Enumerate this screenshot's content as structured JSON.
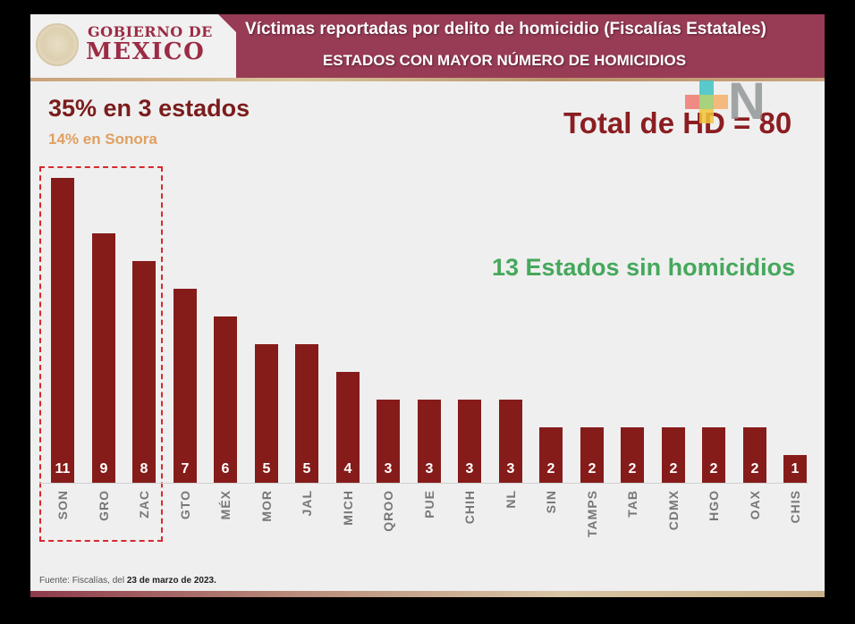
{
  "header": {
    "logo_line1": "GOBIERNO DE",
    "logo_line2": "MÉXICO",
    "title": "Víctimas reportadas por delito de homicidio (Fiscalías Estatales)",
    "subtitle": "ESTADOS CON MAYOR NÚMERO DE HOMICIDIOS"
  },
  "annotations": {
    "headline": "35% en 3 estados",
    "subheadline": "14% en Sonora",
    "total": "Total de HD = 80",
    "no_homicides": "13 Estados sin homicidios"
  },
  "footnote": {
    "prefix": "Fuente: Fiscalías, del ",
    "date": "23 de marzo de 2023."
  },
  "colors": {
    "bar": "#861c1a",
    "header": "#983b55",
    "headline": "#7b1c1c",
    "subheadline": "#e0a060",
    "total": "#8b1e22",
    "no_homicides": "#45a85c",
    "highlight_box": "#d8282e"
  },
  "watermark": {
    "icon": "news-logo-icon",
    "letter": "N"
  },
  "chart_data": {
    "type": "bar",
    "title": "Víctimas reportadas por delito de homicidio (Fiscalías Estatales) — Estados con mayor número de homicidios",
    "xlabel": "",
    "ylabel": "",
    "categories": [
      "SON",
      "GRO",
      "ZAC",
      "GTO",
      "MÉX",
      "MOR",
      "JAL",
      "MICH",
      "QROO",
      "PUE",
      "CHIH",
      "NL",
      "SIN",
      "TAMPS",
      "TAB",
      "CDMX",
      "HGO",
      "OAX",
      "CHIS"
    ],
    "values": [
      11,
      9,
      8,
      7,
      6,
      5,
      5,
      4,
      3,
      3,
      3,
      3,
      2,
      2,
      2,
      2,
      2,
      2,
      1
    ],
    "data_labels": [
      "11",
      "9",
      "8",
      "7",
      "6",
      "5",
      "5",
      "4",
      "3",
      "3",
      "3",
      "3",
      "2",
      "2",
      "2",
      "2",
      "2",
      "2",
      "1"
    ],
    "ylim": [
      0,
      11
    ],
    "grid": false,
    "legend": null,
    "highlighted_categories": [
      "SON",
      "GRO",
      "ZAC"
    ],
    "annotations": [
      "35% en 3 estados",
      "14% en Sonora",
      "Total de HD = 80",
      "13 Estados sin homicidios"
    ]
  }
}
